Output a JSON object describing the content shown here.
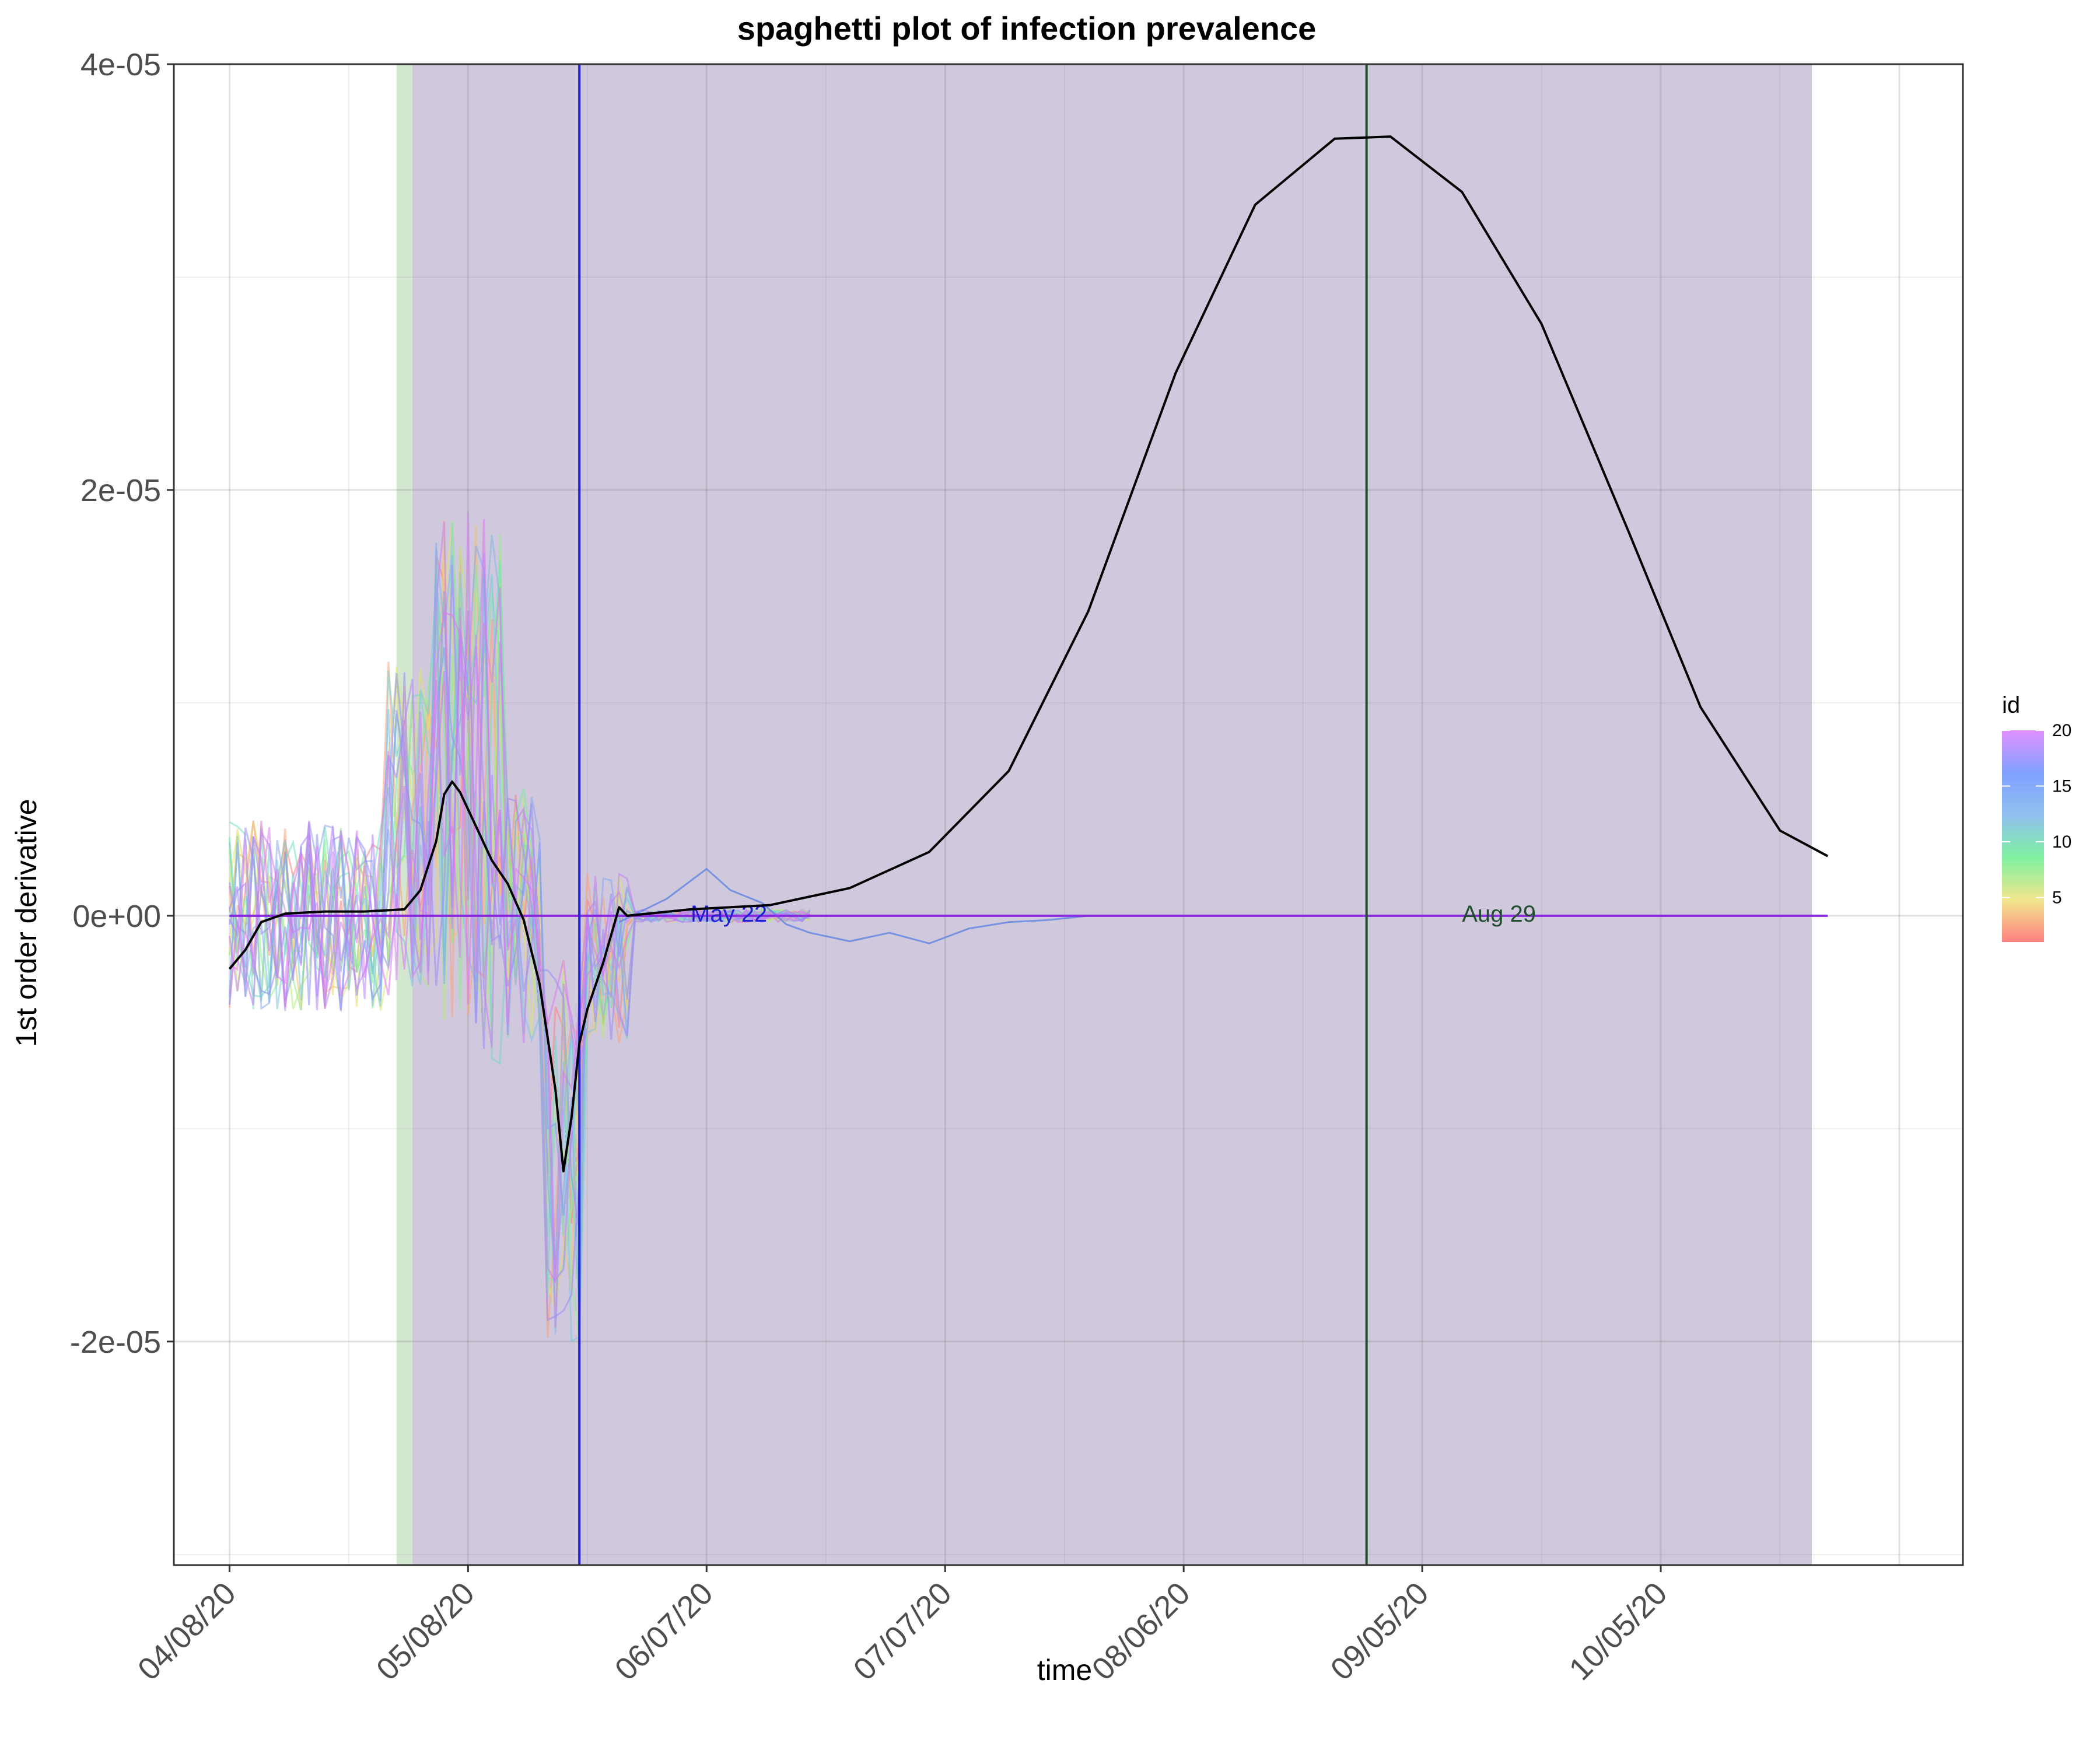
{
  "chart_data": {
    "type": "line",
    "title": "spaghetti plot of infection prevalence",
    "xlabel": "time",
    "ylabel": "1st order derivative",
    "x_axis": "date",
    "xlim": [
      "2020-04-01",
      "2020-11-12"
    ],
    "ylim": [
      -3.05e-05,
      4e-05
    ],
    "grid": true,
    "x_ticks": [
      {
        "date": "2020-04-08",
        "label": "04/08/20"
      },
      {
        "date": "2020-05-08",
        "label": "05/08/20"
      },
      {
        "date": "2020-06-07",
        "label": "06/07/20"
      },
      {
        "date": "2020-07-07",
        "label": "07/07/20"
      },
      {
        "date": "2020-08-06",
        "label": "08/06/20"
      },
      {
        "date": "2020-09-05",
        "label": "09/05/20"
      },
      {
        "date": "2020-10-05",
        "label": "10/05/20"
      }
    ],
    "y_ticks": [
      {
        "value": 4e-05,
        "label": "4e-05"
      },
      {
        "value": 2e-05,
        "label": "2e-05"
      },
      {
        "value": 0,
        "label": "0e+00"
      },
      {
        "value": -2e-05,
        "label": "-2e-05"
      }
    ],
    "shaded_regions": [
      {
        "start": "2020-04-29",
        "end": "2020-05-01",
        "color": "#d3e6d0"
      },
      {
        "start": "2020-05-01",
        "end": "2020-10-24",
        "color": "#d0c8dc"
      }
    ],
    "vertical_lines": [
      {
        "date": "2020-05-22",
        "color": "#1f1fd6",
        "label": "May 22",
        "label_date": "2020-06-05"
      },
      {
        "date": "2020-08-29",
        "color": "#1f4f2f",
        "label": "Aug 29",
        "label_date": "2020-09-10"
      }
    ],
    "mean_curve": {
      "color": "#000000",
      "points": [
        [
          "2020-04-08",
          -2.5e-06
        ],
        [
          "2020-04-10",
          -1.6e-06
        ],
        [
          "2020-04-12",
          -3e-07
        ],
        [
          "2020-04-15",
          1e-07
        ],
        [
          "2020-04-20",
          2e-07
        ],
        [
          "2020-04-25",
          2e-07
        ],
        [
          "2020-04-30",
          3e-07
        ],
        [
          "2020-05-02",
          1.2e-06
        ],
        [
          "2020-05-04",
          3.5e-06
        ],
        [
          "2020-05-05",
          5.7e-06
        ],
        [
          "2020-05-06",
          6.3e-06
        ],
        [
          "2020-05-07",
          5.8e-06
        ],
        [
          "2020-05-09",
          4.2e-06
        ],
        [
          "2020-05-11",
          2.6e-06
        ],
        [
          "2020-05-13",
          1.5e-06
        ],
        [
          "2020-05-15",
          -2e-07
        ],
        [
          "2020-05-17",
          -3.2e-06
        ],
        [
          "2020-05-19",
          -8.2e-06
        ],
        [
          "2020-05-20",
          -1.2e-05
        ],
        [
          "2020-05-21",
          -9.5e-06
        ],
        [
          "2020-05-22",
          -6e-06
        ],
        [
          "2020-05-23",
          -4.4e-06
        ],
        [
          "2020-05-25",
          -2.2e-06
        ],
        [
          "2020-05-27",
          4e-07
        ],
        [
          "2020-05-28",
          0.0
        ],
        [
          "2020-06-05",
          3e-07
        ],
        [
          "2020-06-15",
          5e-07
        ],
        [
          "2020-06-25",
          1.3e-06
        ],
        [
          "2020-07-05",
          3e-06
        ],
        [
          "2020-07-15",
          6.8e-06
        ],
        [
          "2020-07-25",
          1.43e-05
        ],
        [
          "2020-08-05",
          2.55e-05
        ],
        [
          "2020-08-15",
          3.34e-05
        ],
        [
          "2020-08-25",
          3.65e-05
        ],
        [
          "2020-09-01",
          3.66e-05
        ],
        [
          "2020-09-10",
          3.4e-05
        ],
        [
          "2020-09-20",
          2.78e-05
        ],
        [
          "2020-10-01",
          1.8e-05
        ],
        [
          "2020-10-10",
          9.8e-06
        ],
        [
          "2020-10-20",
          4e-06
        ],
        [
          "2020-10-26",
          2.8e-06
        ]
      ]
    },
    "zero_line": {
      "color": "#8b2be2",
      "start": "2020-04-08",
      "end": "2020-10-26",
      "value": 0
    },
    "blue_trace": {
      "color": "#5a82e0",
      "points": [
        [
          "2020-05-27",
          -3e-07
        ],
        [
          "2020-06-02",
          8e-07
        ],
        [
          "2020-06-07",
          2.2e-06
        ],
        [
          "2020-06-10",
          1.2e-06
        ],
        [
          "2020-06-14",
          6e-07
        ],
        [
          "2020-06-17",
          -4e-07
        ],
        [
          "2020-06-20",
          -8e-07
        ],
        [
          "2020-06-25",
          -1.2e-06
        ],
        [
          "2020-06-30",
          -8e-07
        ],
        [
          "2020-07-05",
          -1.3e-06
        ],
        [
          "2020-07-10",
          -6e-07
        ],
        [
          "2020-07-15",
          -3e-07
        ],
        [
          "2020-07-20",
          -2e-07
        ],
        [
          "2020-07-25",
          0.0
        ]
      ]
    },
    "legend": {
      "title": "id",
      "type": "colorbar",
      "placement": "right",
      "breaks": [
        {
          "value": 20,
          "label": "20"
        },
        {
          "value": 15,
          "label": "15"
        },
        {
          "value": 10,
          "label": "10"
        },
        {
          "value": 5,
          "label": "5"
        }
      ],
      "range": [
        1,
        20
      ],
      "gradient": [
        "#ff8080",
        "#f0e68c",
        "#80f0a0",
        "#90c0f0",
        "#80a0ff",
        "#e090ff"
      ]
    },
    "series_count": 20,
    "series_colors": [
      "#ff7f7f",
      "#ffa07a",
      "#f4c06a",
      "#e6d96a",
      "#d8e870",
      "#b7ec7a",
      "#8ff08a",
      "#78ec9e",
      "#72e0b8",
      "#74d6cc",
      "#7cc8dc",
      "#86b8e8",
      "#8aa8f0",
      "#8a98f4",
      "#9090f8",
      "#a088f8",
      "#b484f6",
      "#c680f2",
      "#d47cf0",
      "#de78ee"
    ]
  }
}
